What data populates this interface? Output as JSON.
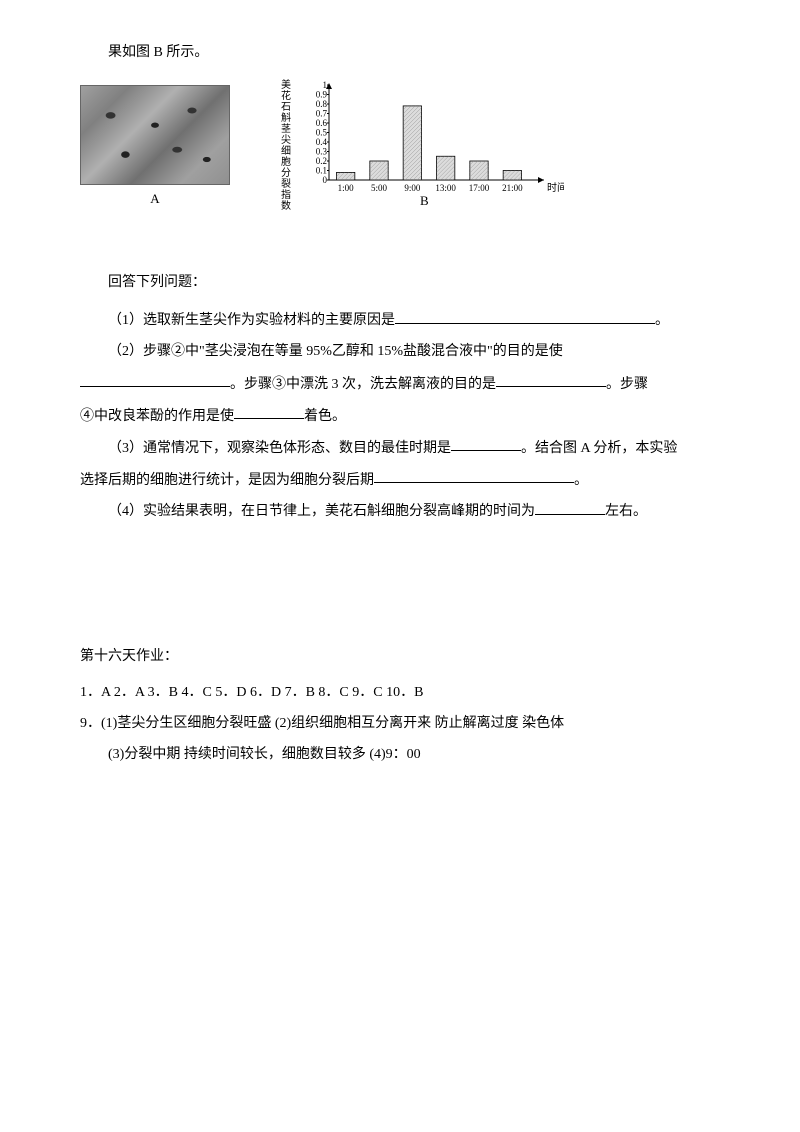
{
  "intro": "果如图 B 所示。",
  "imageA": {
    "label": "A"
  },
  "chart": {
    "type": "bar",
    "ylabel": "美花石斛茎尖细胞分裂指数",
    "ylim": [
      0,
      1.0
    ],
    "yticks": [
      0,
      0.1,
      0.2,
      0.3,
      0.4,
      0.5,
      0.6,
      0.7,
      0.8,
      0.9,
      1
    ],
    "categories": [
      "1:00",
      "5:00",
      "9:00",
      "13:00",
      "17:00",
      "21:00"
    ],
    "values": [
      0.08,
      0.2,
      0.78,
      0.25,
      0.2,
      0.1
    ],
    "xlabel": "时间",
    "bar_color": "#dcdcdc",
    "axis_color": "#000000",
    "grid_color": "#cccccc",
    "label": "B",
    "font_size": 9
  },
  "sectionTitle": "回答下列问题：",
  "q1_prefix": "（1）选取新生茎尖作为实验材料的主要原因是",
  "q1_suffix": "。",
  "q2_line1": "（2）步骤②中\"茎尖浸泡在等量 95%乙醇和 15%盐酸混合液中\"的目的是使",
  "q2_line2_mid": "。步骤③中漂洗 3 次，洗去解离液的目的是",
  "q2_line2_end": "。步骤",
  "q2_line3_prefix": "④中改良苯酚的作用是使",
  "q2_line3_suffix": "着色。",
  "q3_prefix": "（3）通常情况下，观察染色体形态、数目的最佳时期是",
  "q3_mid": "。结合图 A 分析，本实验",
  "q3_line2_prefix": "选择后期的细胞进行统计，是因为细胞分裂后期",
  "q3_line2_suffix": "。",
  "q4_prefix": "（4）实验结果表明，在日节律上，美花石斛细胞分裂高峰期的时间为",
  "q4_suffix": "左右。",
  "answersTitle": "第十六天作业：",
  "answersLine1": "1．A  2．A  3．B  4．C  5．D  6．D  7．B  8．C  9．C  10．B",
  "answersLine2": "9．(1)茎尖分生区细胞分裂旺盛     (2)组织细胞相互分离开来  防止解离过度  染色体",
  "answersLine3": "(3)分裂中期  持续时间较长，细胞数目较多       (4)9：00"
}
